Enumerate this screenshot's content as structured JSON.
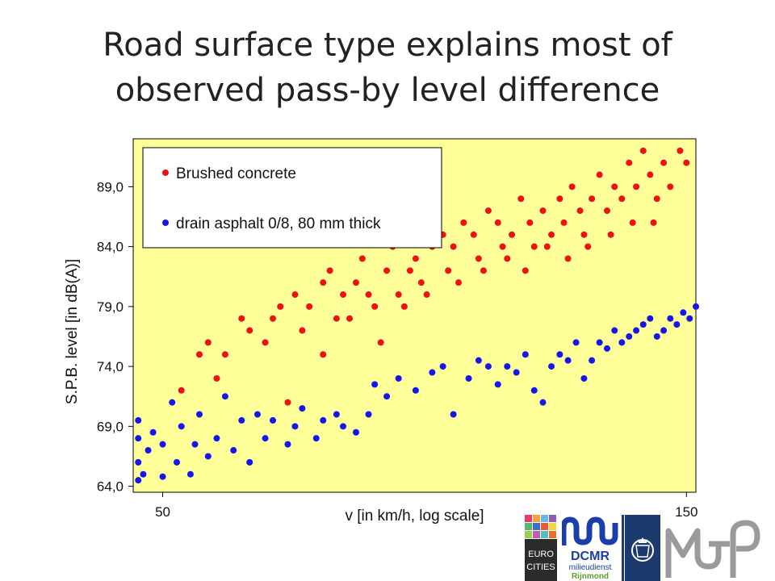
{
  "title_lines": [
    "Road surface type explains most of",
    "observed pass-by level difference"
  ],
  "logos": {
    "eurocities": {
      "line1": "EURO",
      "line2": "CITIES"
    },
    "dcmr": {
      "name": "DCMR",
      "line1": "milieudienst",
      "line2": "Rijnmond"
    }
  },
  "chart_data": {
    "type": "scatter",
    "xlabel": "v [in km/h, log scale]",
    "ylabel": "S.P.B. level  [in dB(A)]",
    "xscale": "log",
    "xlim": [
      47,
      153
    ],
    "ylim": [
      63.5,
      93
    ],
    "x_ticks": [
      {
        "value": 50,
        "label": "50"
      },
      {
        "value": 150,
        "label": "150"
      }
    ],
    "y_ticks": [
      {
        "value": 64,
        "label": "64,0"
      },
      {
        "value": 69,
        "label": "69,0"
      },
      {
        "value": 74,
        "label": "74,0"
      },
      {
        "value": 79,
        "label": "79,0"
      },
      {
        "value": 84,
        "label": "84,0"
      },
      {
        "value": 89,
        "label": "89,0"
      }
    ],
    "grid": false,
    "legend_position": "top-left",
    "background": "#ffff99",
    "series": [
      {
        "name": "Brushed concrete",
        "color": "#ee1111",
        "points": [
          [
            52,
            72
          ],
          [
            54,
            75
          ],
          [
            55,
            76
          ],
          [
            56,
            73
          ],
          [
            57,
            75
          ],
          [
            59,
            78
          ],
          [
            60,
            77
          ],
          [
            62,
            76
          ],
          [
            63,
            78
          ],
          [
            64,
            79
          ],
          [
            65,
            71
          ],
          [
            66,
            80
          ],
          [
            67,
            77
          ],
          [
            68,
            79
          ],
          [
            70,
            81
          ],
          [
            71,
            82
          ],
          [
            72,
            78
          ],
          [
            73,
            80
          ],
          [
            75,
            81
          ],
          [
            76,
            83
          ],
          [
            77,
            80
          ],
          [
            78,
            79
          ],
          [
            80,
            82
          ],
          [
            81,
            84
          ],
          [
            82,
            80
          ],
          [
            84,
            82
          ],
          [
            85,
            83
          ],
          [
            86,
            81
          ],
          [
            88,
            84
          ],
          [
            90,
            85
          ],
          [
            91,
            82
          ],
          [
            92,
            84
          ],
          [
            94,
            86
          ],
          [
            96,
            85
          ],
          [
            97,
            83
          ],
          [
            99,
            87
          ],
          [
            101,
            86
          ],
          [
            102,
            84
          ],
          [
            104,
            85
          ],
          [
            106,
            88
          ],
          [
            108,
            86
          ],
          [
            109,
            84
          ],
          [
            111,
            87
          ],
          [
            113,
            85
          ],
          [
            115,
            88
          ],
          [
            116,
            86
          ],
          [
            118,
            89
          ],
          [
            120,
            87
          ],
          [
            121,
            85
          ],
          [
            123,
            88
          ],
          [
            125,
            90
          ],
          [
            127,
            87
          ],
          [
            129,
            89
          ],
          [
            131,
            88
          ],
          [
            133,
            91
          ],
          [
            135,
            89
          ],
          [
            137,
            92
          ],
          [
            139,
            90
          ],
          [
            141,
            88
          ],
          [
            143,
            91
          ],
          [
            145,
            89
          ],
          [
            148,
            92
          ],
          [
            150,
            91
          ],
          [
            70,
            75
          ],
          [
            74,
            78
          ],
          [
            79,
            76
          ],
          [
            83,
            79
          ],
          [
            87,
            80
          ],
          [
            93,
            81
          ],
          [
            98,
            82
          ],
          [
            103,
            83
          ],
          [
            107,
            82
          ],
          [
            112,
            84
          ],
          [
            117,
            83
          ],
          [
            122,
            84
          ],
          [
            128,
            85
          ],
          [
            134,
            86
          ],
          [
            140,
            86
          ]
        ]
      },
      {
        "name": "drain asphalt 0/8, 80 mm thick",
        "color": "#1515ee",
        "points": [
          [
            47.5,
            64.5
          ],
          [
            47.5,
            66
          ],
          [
            47.5,
            68
          ],
          [
            47.5,
            69.5
          ],
          [
            48,
            65
          ],
          [
            48.5,
            67
          ],
          [
            49,
            68.5
          ],
          [
            50,
            64.8
          ],
          [
            50,
            67.5
          ],
          [
            51,
            71
          ],
          [
            51.5,
            66
          ],
          [
            52,
            69
          ],
          [
            53,
            65
          ],
          [
            53.5,
            67.5
          ],
          [
            54,
            70
          ],
          [
            55,
            66.5
          ],
          [
            56,
            68
          ],
          [
            57,
            71.5
          ],
          [
            58,
            67
          ],
          [
            59,
            69.5
          ],
          [
            60,
            66
          ],
          [
            61,
            70
          ],
          [
            62,
            68
          ],
          [
            63,
            69.5
          ],
          [
            65,
            67.5
          ],
          [
            66,
            69
          ],
          [
            67,
            70.5
          ],
          [
            69,
            68
          ],
          [
            70,
            69.5
          ],
          [
            72,
            70
          ],
          [
            73,
            69
          ],
          [
            75,
            68.5
          ],
          [
            77,
            70
          ],
          [
            78,
            72.5
          ],
          [
            80,
            71.5
          ],
          [
            82,
            73
          ],
          [
            85,
            72
          ],
          [
            88,
            73.5
          ],
          [
            90,
            74
          ],
          [
            92,
            70
          ],
          [
            95,
            73
          ],
          [
            97,
            74.5
          ],
          [
            99,
            74
          ],
          [
            101,
            72.5
          ],
          [
            103,
            74
          ],
          [
            105,
            73.5
          ],
          [
            107,
            75
          ],
          [
            109,
            72
          ],
          [
            111,
            71
          ],
          [
            113,
            74
          ],
          [
            115,
            75
          ],
          [
            117,
            74.5
          ],
          [
            119,
            76
          ],
          [
            121,
            73
          ],
          [
            123,
            74.5
          ],
          [
            125,
            76
          ],
          [
            127,
            75.5
          ],
          [
            129,
            77
          ],
          [
            131,
            76
          ],
          [
            133,
            76.5
          ],
          [
            135,
            77
          ],
          [
            137,
            77.5
          ],
          [
            139,
            78
          ],
          [
            141,
            76.5
          ],
          [
            143,
            77
          ],
          [
            145,
            78
          ],
          [
            147,
            77.5
          ],
          [
            149,
            78.5
          ],
          [
            151,
            78
          ],
          [
            153,
            79
          ]
        ]
      }
    ]
  }
}
